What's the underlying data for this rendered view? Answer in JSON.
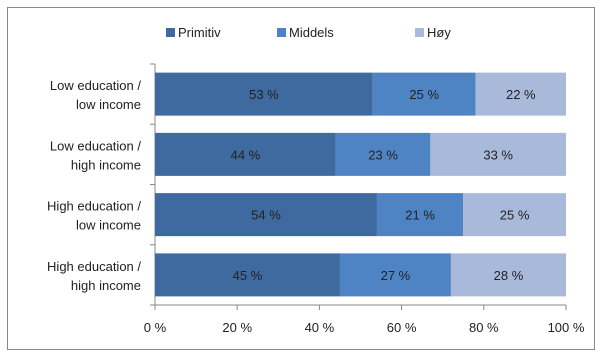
{
  "chart_data": {
    "type": "bar",
    "orientation": "horizontal",
    "stacked": true,
    "percent": true,
    "categories": [
      [
        "Low education /",
        "low income"
      ],
      [
        "Low education /",
        "high income"
      ],
      [
        "High education /",
        "low income"
      ],
      [
        "High education /",
        "high income"
      ]
    ],
    "series": [
      {
        "name": "Primitiv",
        "color": "#3e6aa0",
        "values": [
          53,
          44,
          54,
          45
        ],
        "labels": [
          "53 %",
          "44 %",
          "54 %",
          "45 %"
        ]
      },
      {
        "name": "Middels",
        "color": "#4f84c4",
        "values": [
          25,
          23,
          21,
          27
        ],
        "labels": [
          "25 %",
          "23 %",
          "21 %",
          "27 %"
        ]
      },
      {
        "name": "Høy",
        "color": "#a9b9d9",
        "values": [
          22,
          33,
          25,
          28
        ],
        "labels": [
          "22 %",
          "33 %",
          "25 %",
          "28 %"
        ]
      }
    ],
    "xlim": [
      0,
      100
    ],
    "xticks": [
      "0 %",
      "20 %",
      "40 %",
      "60 %",
      "80 %",
      "100 %"
    ],
    "legend_position": "top",
    "grid": false
  }
}
